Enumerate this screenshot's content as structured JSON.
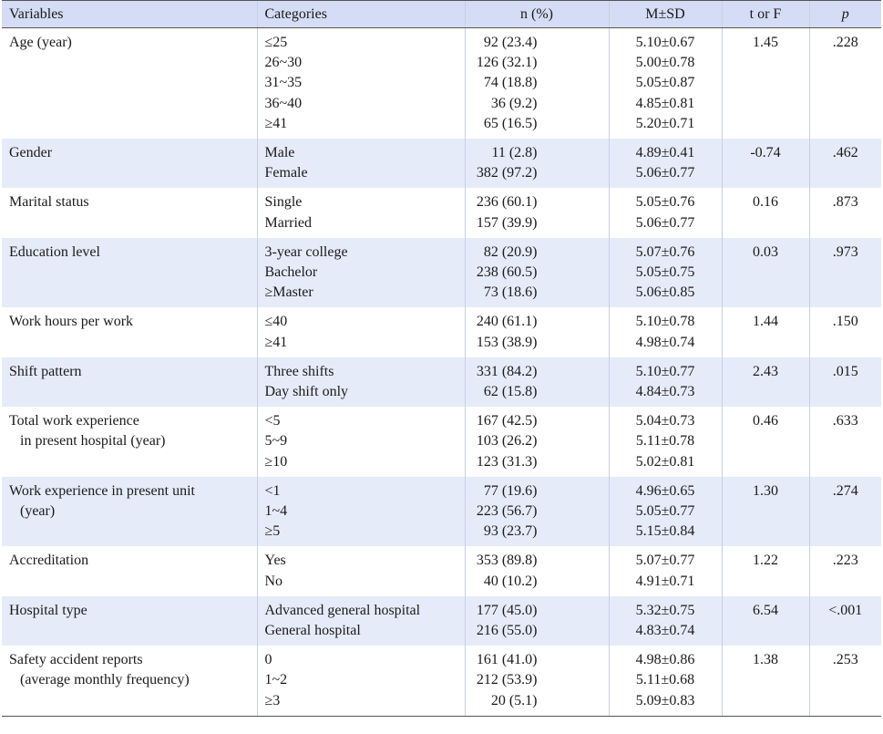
{
  "headers": {
    "variables": "Variables",
    "categories": "Categories",
    "n": "n (%)",
    "msd": "M±SD",
    "t": "t or F",
    "p": "p"
  },
  "rows": [
    {
      "variable": [
        "Age (year)"
      ],
      "categories": [
        "≤25",
        "26~30",
        "31~35",
        "36~40",
        "≥41"
      ],
      "n": [
        "92 (23.4)",
        "126 (32.1)",
        "74 (18.8)",
        "36 (9.2)",
        "65 (16.5)"
      ],
      "msd": [
        "5.10±0.67",
        "5.00±0.78",
        "5.05±0.87",
        "4.85±0.81",
        "5.20±0.71"
      ],
      "t": "1.45",
      "p": ".228"
    },
    {
      "variable": [
        "Gender"
      ],
      "categories": [
        "Male",
        "Female"
      ],
      "n": [
        "11 (2.8)",
        "382 (97.2)"
      ],
      "msd": [
        "4.89±0.41",
        "5.06±0.77"
      ],
      "t": "-0.74",
      "p": ".462"
    },
    {
      "variable": [
        "Marital status"
      ],
      "categories": [
        "Single",
        "Married"
      ],
      "n": [
        "236 (60.1)",
        "157 (39.9)"
      ],
      "msd": [
        "5.05±0.76",
        "5.06±0.77"
      ],
      "t": "0.16",
      "p": ".873"
    },
    {
      "variable": [
        "Education level"
      ],
      "categories": [
        "3-year college",
        "Bachelor",
        "≥Master"
      ],
      "n": [
        "82 (20.9)",
        "238 (60.5)",
        "73 (18.6)"
      ],
      "msd": [
        "5.07±0.76",
        "5.05±0.75",
        "5.06±0.85"
      ],
      "t": "0.03",
      "p": ".973"
    },
    {
      "variable": [
        "Work hours per work"
      ],
      "categories": [
        "≤40",
        "≥41"
      ],
      "n": [
        "240 (61.1)",
        "153 (38.9)"
      ],
      "msd": [
        "5.10±0.78",
        "4.98±0.74"
      ],
      "t": "1.44",
      "p": ".150"
    },
    {
      "variable": [
        "Shift pattern"
      ],
      "categories": [
        "Three shifts",
        "Day shift only"
      ],
      "n": [
        "331 (84.2)",
        "62 (15.8)"
      ],
      "msd": [
        "5.10±0.77",
        "4.84±0.73"
      ],
      "t": "2.43",
      "p": ".015"
    },
    {
      "variable": [
        "Total work experience",
        "in present hospital (year)"
      ],
      "categories": [
        "<5",
        "5~9",
        "≥10"
      ],
      "n": [
        "167 (42.5)",
        "103 (26.2)",
        "123 (31.3)"
      ],
      "msd": [
        "5.04±0.73",
        "5.11±0.78",
        "5.02±0.81"
      ],
      "t": "0.46",
      "p": ".633"
    },
    {
      "variable": [
        "Work experience in present unit",
        "(year)"
      ],
      "categories": [
        "<1",
        "1~4",
        "≥5"
      ],
      "n": [
        "77 (19.6)",
        "223 (56.7)",
        "93 (23.7)"
      ],
      "msd": [
        "4.96±0.65",
        "5.05±0.77",
        "5.15±0.84"
      ],
      "t": "1.30",
      "p": ".274"
    },
    {
      "variable": [
        "Accreditation"
      ],
      "categories": [
        "Yes",
        "No"
      ],
      "n": [
        "353 (89.8)",
        "40 (10.2)"
      ],
      "msd": [
        "5.07±0.77",
        "4.91±0.71"
      ],
      "t": "1.22",
      "p": ".223"
    },
    {
      "variable": [
        "Hospital type"
      ],
      "categories": [
        "Advanced general hospital",
        "General hospital"
      ],
      "n": [
        "177 (45.0)",
        "216 (55.0)"
      ],
      "msd": [
        "5.32±0.75",
        "4.83±0.74"
      ],
      "t": "6.54",
      "p": "<.001"
    },
    {
      "variable": [
        "Safety accident reports",
        "(average monthly frequency)"
      ],
      "categories": [
        "0",
        "1~2",
        "≥3"
      ],
      "n": [
        "161 (41.0)",
        "212 (53.9)",
        "20 (5.1)"
      ],
      "msd": [
        "4.98±0.86",
        "5.11±0.68",
        "5.09±0.83"
      ],
      "t": "1.38",
      "p": ".253"
    }
  ]
}
